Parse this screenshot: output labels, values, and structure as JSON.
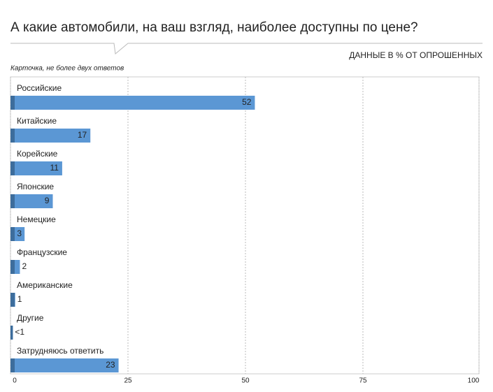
{
  "chart_data": {
    "type": "bar",
    "orientation": "horizontal",
    "title": "А какие автомобили, на ваш взгляд, наиболее доступны по цене?",
    "subtitle": "Карточка, не более двух ответов",
    "unit_note": "ДАННЫЕ В % ОТ ОПРОШЕННЫХ",
    "categories": [
      "Российские",
      "Китайские",
      "Корейские",
      "Японские",
      "Немецкие",
      "Французские",
      "Американские",
      "Другие",
      "Затрудняюсь ответить"
    ],
    "values": [
      52,
      17,
      11,
      9,
      3,
      2,
      1,
      0.5,
      23
    ],
    "value_labels": [
      "52",
      "17",
      "11",
      "9",
      "3",
      "2",
      "1",
      "<1",
      "23"
    ],
    "color": "#5b97d4",
    "xlim": [
      0,
      100
    ],
    "xticks": [
      0,
      25,
      50,
      75,
      100
    ],
    "grid": true
  }
}
